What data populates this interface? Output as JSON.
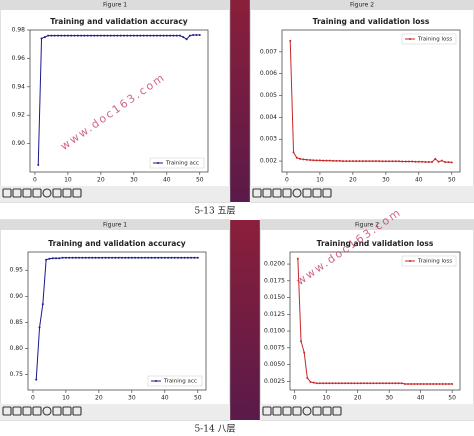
{
  "windows": [
    "Figure 1",
    "Figure 2",
    "Figure 1",
    "Figure 2"
  ],
  "captions": [
    "5-13 五层",
    "5-14 八层"
  ],
  "watermarks": [
    "www.doc163.com",
    "www.doc163.com"
  ],
  "chart_data": [
    {
      "type": "line",
      "title": "Training and validation accuracy",
      "legend": "lower right",
      "x": [
        1,
        2,
        3,
        4,
        5,
        6,
        7,
        8,
        9,
        10,
        11,
        12,
        13,
        14,
        15,
        16,
        17,
        18,
        19,
        20,
        21,
        22,
        23,
        24,
        25,
        26,
        27,
        28,
        29,
        30,
        31,
        32,
        33,
        34,
        35,
        36,
        37,
        38,
        39,
        40,
        41,
        42,
        43,
        44,
        45,
        46,
        47,
        48,
        49,
        50
      ],
      "series": [
        {
          "name": "Training acc",
          "color": "#1a1a8c",
          "values": [
            0.885,
            0.974,
            0.975,
            0.976,
            0.976,
            0.976,
            0.976,
            0.976,
            0.976,
            0.976,
            0.976,
            0.976,
            0.976,
            0.976,
            0.976,
            0.976,
            0.976,
            0.976,
            0.976,
            0.976,
            0.976,
            0.976,
            0.976,
            0.976,
            0.976,
            0.976,
            0.976,
            0.976,
            0.976,
            0.976,
            0.976,
            0.976,
            0.976,
            0.976,
            0.976,
            0.976,
            0.976,
            0.976,
            0.976,
            0.976,
            0.976,
            0.976,
            0.976,
            0.976,
            0.975,
            0.9735,
            0.976,
            0.9765,
            0.9765,
            0.9765
          ]
        }
      ],
      "xlim": [
        -1.5,
        52.5
      ],
      "xticks": [
        0,
        10,
        20,
        30,
        40,
        50
      ],
      "ylim": [
        0.88,
        0.98
      ],
      "yticks": [
        {
          "value": 0.9,
          "label": "0.90"
        },
        0.92,
        0.94,
        0.96,
        0.98
      ]
    },
    {
      "type": "line",
      "title": "Training and validation loss",
      "legend": "upper right",
      "x": [
        1,
        2,
        3,
        4,
        5,
        6,
        7,
        8,
        9,
        10,
        11,
        12,
        13,
        14,
        15,
        16,
        17,
        18,
        19,
        20,
        21,
        22,
        23,
        24,
        25,
        26,
        27,
        28,
        29,
        30,
        31,
        32,
        33,
        34,
        35,
        36,
        37,
        38,
        39,
        40,
        41,
        42,
        43,
        44,
        45,
        46,
        47,
        48,
        49,
        50
      ],
      "series": [
        {
          "name": "Training loss",
          "color": "#c62828",
          "values": [
            0.0075,
            0.0024,
            0.00215,
            0.0021,
            0.00208,
            0.00206,
            0.00205,
            0.00204,
            0.00203,
            0.00203,
            0.00202,
            0.00202,
            0.00202,
            0.00201,
            0.00201,
            0.00201,
            0.002,
            0.002,
            0.002,
            0.002,
            0.002,
            0.002,
            0.002,
            0.002,
            0.002,
            0.002,
            0.002,
            0.002,
            0.00199,
            0.00199,
            0.00199,
            0.00199,
            0.00199,
            0.00199,
            0.00198,
            0.00198,
            0.00198,
            0.00198,
            0.00197,
            0.00197,
            0.00197,
            0.00196,
            0.00196,
            0.00196,
            0.0021,
            0.00197,
            0.00202,
            0.00195,
            0.00195,
            0.00194
          ]
        }
      ],
      "xlim": [
        -1.5,
        52.5
      ],
      "xticks": [
        0,
        10,
        20,
        30,
        40,
        50
      ],
      "ylim": [
        0.0015,
        0.008
      ],
      "yticks": [
        0.002,
        0.003,
        0.004,
        0.005,
        0.006,
        0.007
      ]
    },
    {
      "type": "line",
      "title": "Training and validation accuracy",
      "legend": "lower right",
      "x": [
        1,
        2,
        3,
        4,
        5,
        6,
        7,
        8,
        9,
        10,
        11,
        12,
        13,
        14,
        15,
        16,
        17,
        18,
        19,
        20,
        21,
        22,
        23,
        24,
        25,
        26,
        27,
        28,
        29,
        30,
        31,
        32,
        33,
        34,
        35,
        36,
        37,
        38,
        39,
        40,
        41,
        42,
        43,
        44,
        45,
        46,
        47,
        48,
        49,
        50
      ],
      "series": [
        {
          "name": "Training acc",
          "color": "#1a1a8c",
          "values": [
            0.74,
            0.84,
            0.885,
            0.97,
            0.972,
            0.973,
            0.973,
            0.973,
            0.974,
            0.974,
            0.974,
            0.974,
            0.974,
            0.974,
            0.974,
            0.974,
            0.974,
            0.974,
            0.974,
            0.974,
            0.974,
            0.974,
            0.974,
            0.974,
            0.974,
            0.974,
            0.974,
            0.974,
            0.974,
            0.974,
            0.974,
            0.974,
            0.974,
            0.974,
            0.974,
            0.974,
            0.974,
            0.974,
            0.974,
            0.974,
            0.974,
            0.974,
            0.974,
            0.974,
            0.974,
            0.974,
            0.974,
            0.974,
            0.974,
            0.974
          ]
        }
      ],
      "xlim": [
        -1.5,
        52.5
      ],
      "xticks": [
        0,
        10,
        20,
        30,
        40,
        50
      ],
      "ylim": [
        0.72,
        0.985
      ],
      "yticks": [
        0.75,
        {
          "value": 0.8,
          "label": "0.80"
        },
        0.85,
        {
          "value": 0.9,
          "label": "0.90"
        },
        0.95
      ]
    },
    {
      "type": "line",
      "title": "Training and validation loss",
      "legend": "upper right",
      "x": [
        1,
        2,
        3,
        4,
        5,
        6,
        7,
        8,
        9,
        10,
        11,
        12,
        13,
        14,
        15,
        16,
        17,
        18,
        19,
        20,
        21,
        22,
        23,
        24,
        25,
        26,
        27,
        28,
        29,
        30,
        31,
        32,
        33,
        34,
        35,
        36,
        37,
        38,
        39,
        40,
        41,
        42,
        43,
        44,
        45,
        46,
        47,
        48,
        49,
        50
      ],
      "series": [
        {
          "name": "Training loss",
          "color": "#c62828",
          "values": [
            0.0208,
            0.0085,
            0.0068,
            0.003,
            0.0024,
            0.0023,
            0.0022,
            0.0022,
            0.0022,
            0.0022,
            0.0022,
            0.0022,
            0.0022,
            0.0022,
            0.0022,
            0.0022,
            0.0022,
            0.0022,
            0.0022,
            0.0022,
            0.0022,
            0.0022,
            0.0022,
            0.0022,
            0.0022,
            0.0022,
            0.0022,
            0.0022,
            0.0022,
            0.0022,
            0.0022,
            0.0022,
            0.0022,
            0.0022,
            0.0021,
            0.0021,
            0.0021,
            0.0021,
            0.0021,
            0.0021,
            0.0021,
            0.0021,
            0.0021,
            0.0021,
            0.0021,
            0.0021,
            0.0021,
            0.0021,
            0.0021,
            0.0021
          ]
        }
      ],
      "xlim": [
        -1.5,
        52.5
      ],
      "xticks": [
        0,
        10,
        20,
        30,
        40,
        50
      ],
      "ylim": [
        0.0012,
        0.0218
      ],
      "yticks": [
        0.0025,
        {
          "value": 0.005,
          "label": "0.0050"
        },
        0.0075,
        {
          "value": 0.01,
          "label": "0.0100"
        },
        0.0125,
        {
          "value": 0.015,
          "label": "0.0150"
        },
        0.0175,
        {
          "value": 0.02,
          "label": "0.0200"
        }
      ]
    }
  ]
}
